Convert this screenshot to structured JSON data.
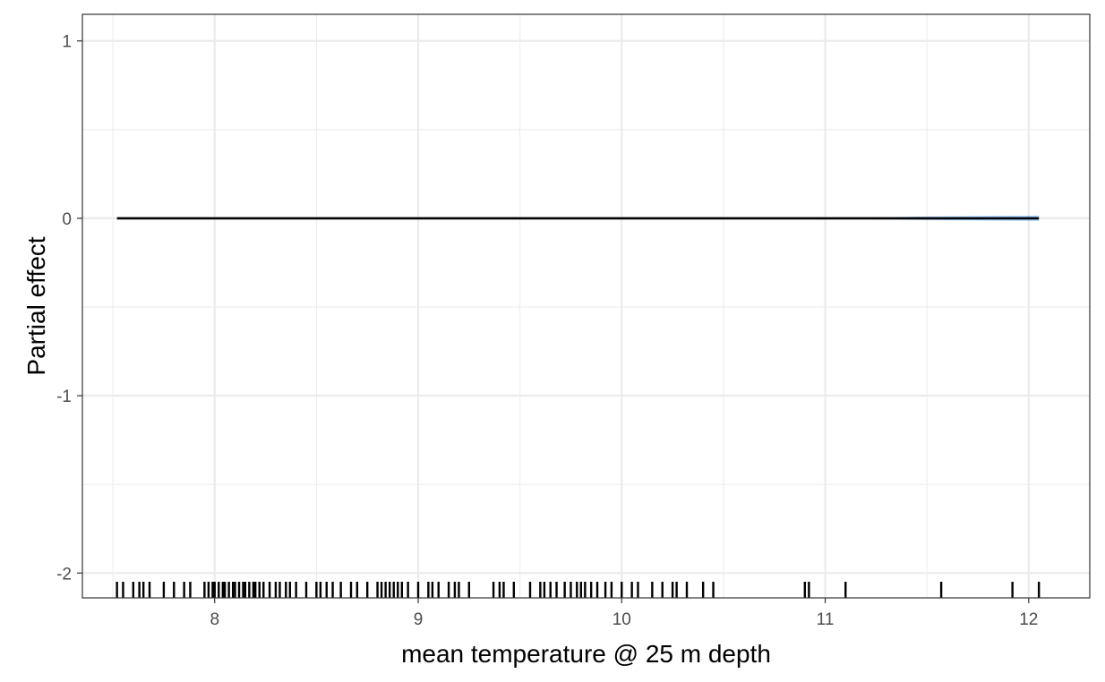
{
  "chart_data": {
    "type": "line",
    "title": "",
    "xlabel": "mean temperature @ 25 m depth",
    "ylabel": "Partial effect",
    "xlim": [
      7.35,
      12.3
    ],
    "ylim": [
      -2.14,
      1.15
    ],
    "x_ticks": [
      8,
      9,
      10,
      11,
      12
    ],
    "x_tick_labels": [
      "8",
      "9",
      "10",
      "11",
      "12"
    ],
    "y_ticks": [
      1,
      0,
      -1,
      -2
    ],
    "y_tick_labels": [
      "1",
      "0",
      "-1",
      "-2"
    ],
    "grid": true,
    "legend": "none",
    "series": [
      {
        "x": [
          7.52,
          8.0,
          8.5,
          9.0,
          9.5,
          10.0,
          10.5,
          11.0,
          11.5,
          12.05
        ],
        "y": [
          0,
          0,
          0,
          0,
          0,
          0,
          0,
          0,
          0,
          0
        ],
        "ribbon_lower": [
          0,
          0,
          0,
          0,
          0,
          0,
          0,
          0,
          -0.01,
          -0.015
        ],
        "ribbon_upper": [
          0,
          0,
          0,
          0,
          0,
          0,
          0,
          0,
          0.01,
          0.015
        ]
      }
    ],
    "rug_x": [
      7.52,
      7.55,
      7.6,
      7.63,
      7.65,
      7.68,
      7.75,
      7.8,
      7.85,
      7.88,
      7.95,
      7.97,
      7.99,
      8.0,
      8.02,
      8.04,
      8.05,
      8.07,
      8.09,
      8.1,
      8.12,
      8.14,
      8.15,
      8.17,
      8.19,
      8.2,
      8.22,
      8.24,
      8.27,
      8.3,
      8.32,
      8.35,
      8.37,
      8.4,
      8.45,
      8.5,
      8.52,
      8.55,
      8.58,
      8.62,
      8.67,
      8.7,
      8.75,
      8.8,
      8.82,
      8.84,
      8.86,
      8.88,
      8.9,
      8.92,
      8.95,
      9.0,
      9.05,
      9.07,
      9.1,
      9.15,
      9.18,
      9.2,
      9.25,
      9.37,
      9.4,
      9.42,
      9.47,
      9.55,
      9.6,
      9.62,
      9.65,
      9.68,
      9.72,
      9.75,
      9.78,
      9.8,
      9.82,
      9.85,
      9.88,
      9.92,
      9.95,
      10.0,
      10.05,
      10.08,
      10.15,
      10.2,
      10.25,
      10.27,
      10.32,
      10.4,
      10.45,
      10.9,
      10.92,
      11.1,
      11.57,
      11.92,
      12.05
    ],
    "colors": {
      "line": "#000000",
      "ribbon": "#3399ff",
      "grid": "#ebebeb",
      "panel_border": "#333333",
      "rug": "#000000"
    }
  }
}
